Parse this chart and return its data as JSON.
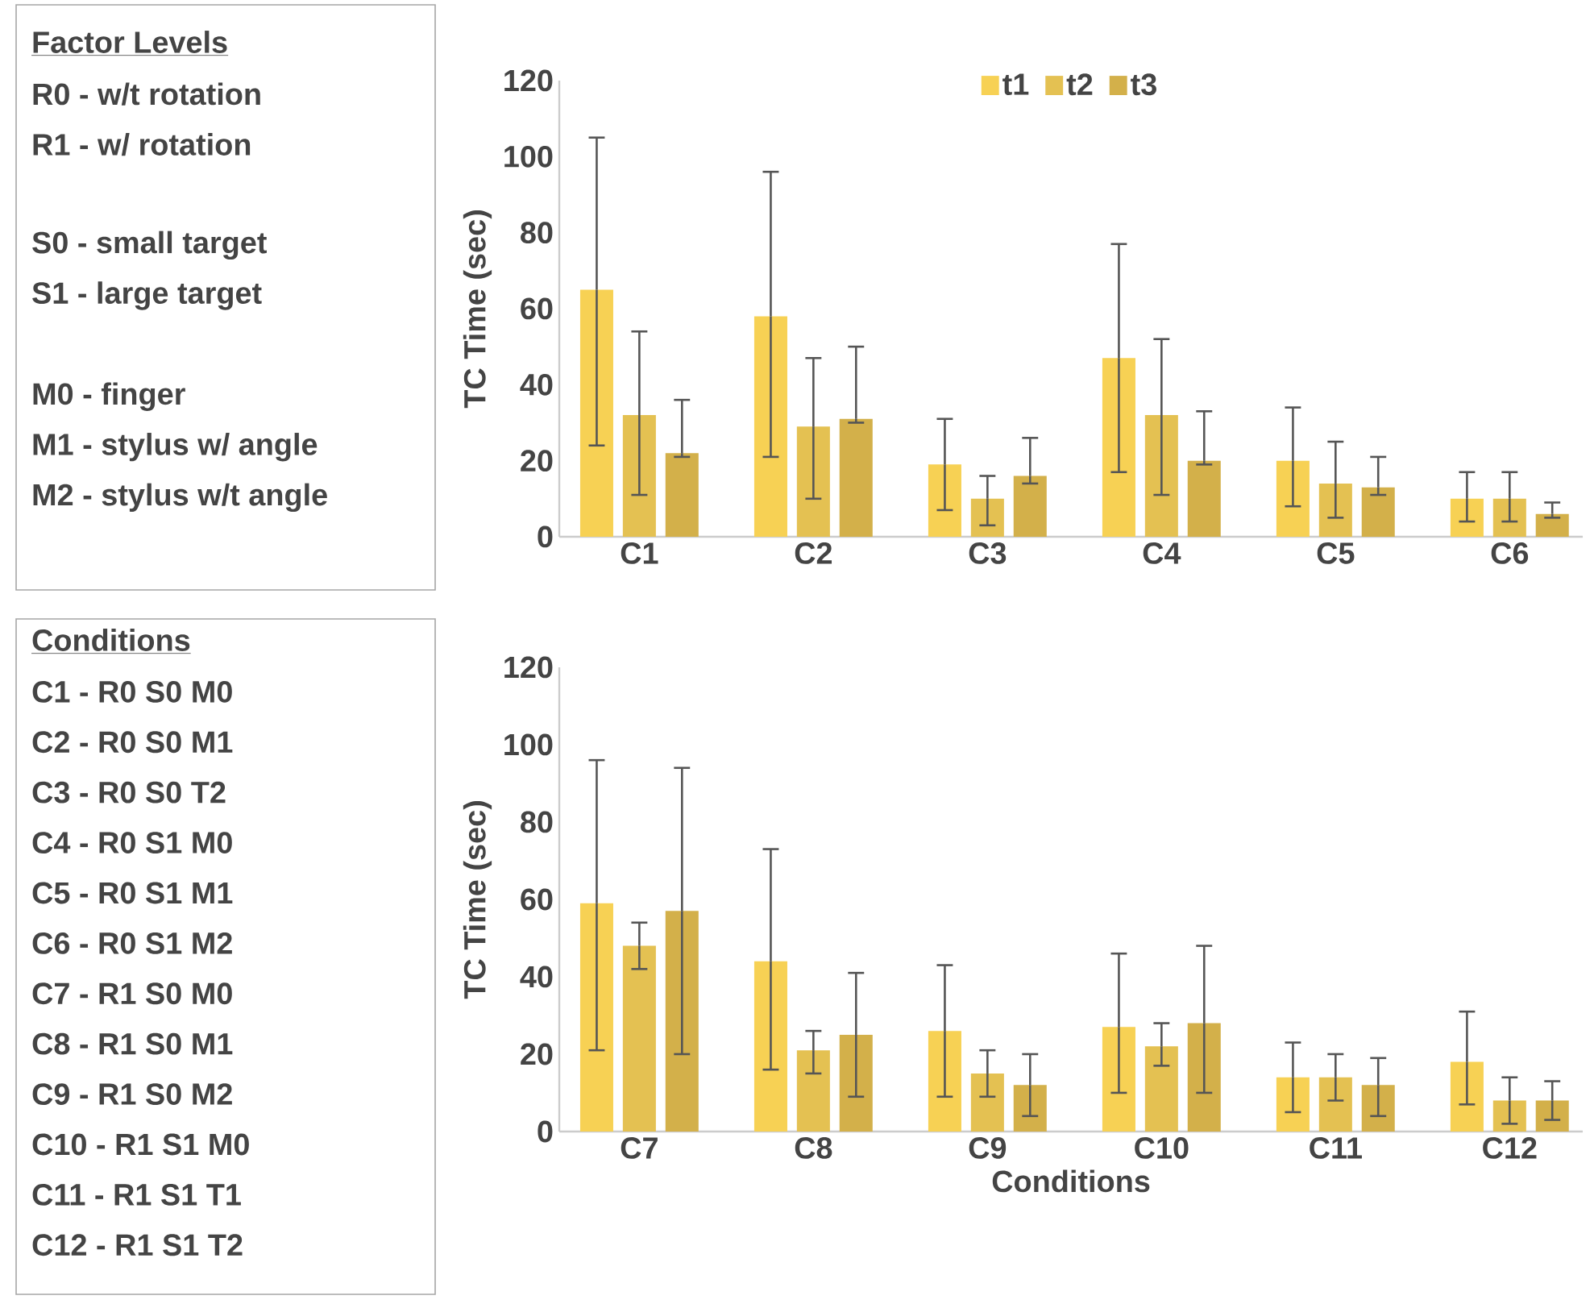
{
  "chart_data": [
    {
      "type": "other",
      "title": "Factor Levels",
      "annotations": [
        "R0 - w/t rotation",
        "R1 - w/ rotation",
        "S0 - small target",
        "S1 - large target",
        "M0 - finger",
        "M1 - stylus w/ angle",
        "M2 - stylus w/t angle"
      ]
    },
    {
      "type": "bar",
      "ylabel": "TC Time (sec)",
      "categories": [
        "C1",
        "C2",
        "C3",
        "C4",
        "C5",
        "C6"
      ],
      "ylim": [
        0,
        120
      ],
      "yticks": [
        0,
        20,
        40,
        60,
        80,
        100,
        120
      ],
      "legend": "top",
      "series": [
        {
          "name": "t1",
          "color": "#f7d154",
          "values": [
            65,
            58,
            19,
            47,
            20,
            10
          ],
          "errors": [
            [
              24,
              105
            ],
            [
              21,
              96
            ],
            [
              7,
              31
            ],
            [
              17,
              77
            ],
            [
              8,
              34
            ],
            [
              4,
              17
            ]
          ]
        },
        {
          "name": "t2",
          "color": "#e4c152",
          "values": [
            32,
            29,
            10,
            32,
            14,
            10
          ],
          "errors": [
            [
              11,
              54
            ],
            [
              10,
              47
            ],
            [
              3,
              16
            ],
            [
              11,
              52
            ],
            [
              5,
              25
            ],
            [
              4,
              17
            ]
          ]
        },
        {
          "name": "t3",
          "color": "#d3b04a",
          "values": [
            22,
            31,
            16,
            20,
            13,
            6
          ],
          "errors": [
            [
              21,
              36
            ],
            [
              30,
              50
            ],
            [
              14,
              26
            ],
            [
              19,
              33
            ],
            [
              11,
              21
            ],
            [
              5,
              9
            ]
          ]
        }
      ]
    },
    {
      "type": "other",
      "title": "Conditions",
      "annotations": [
        "C1 - R0 S0 M0",
        "C2 - R0 S0 M1",
        "C3 - R0 S0 T2",
        "C4 - R0 S1 M0",
        "C5 - R0 S1 M1",
        "C6 - R0 S1 M2",
        "C7 - R1 S0 M0",
        "C8 - R1 S0 M1",
        "C9 - R1 S0 M2",
        "C10 - R1 S1 M0",
        "C11 - R1 S1 T1",
        "C12 - R1 S1 T2"
      ]
    },
    {
      "type": "bar",
      "xlabel": "Conditions",
      "ylabel": "TC Time (sec)",
      "categories": [
        "C7",
        "C8",
        "C9",
        "C10",
        "C11",
        "C12"
      ],
      "ylim": [
        0,
        120
      ],
      "yticks": [
        0,
        20,
        40,
        60,
        80,
        100,
        120
      ],
      "series": [
        {
          "color": "#f7d154",
          "values": [
            59,
            44,
            26,
            27,
            14,
            18
          ],
          "errors": [
            [
              21,
              96
            ],
            [
              16,
              73
            ],
            [
              9,
              43
            ],
            [
              10,
              46
            ],
            [
              5,
              23
            ],
            [
              7,
              31
            ]
          ]
        },
        {
          "color": "#e4c152",
          "values": [
            48,
            21,
            15,
            22,
            14,
            8
          ],
          "errors": [
            [
              42,
              54
            ],
            [
              15,
              26
            ],
            [
              9,
              21
            ],
            [
              17,
              28
            ],
            [
              8,
              20
            ],
            [
              2,
              14
            ]
          ]
        },
        {
          "color": "#d3b04a",
          "values": [
            57,
            25,
            12,
            28,
            12,
            8
          ],
          "errors": [
            [
              20,
              94
            ],
            [
              9,
              41
            ],
            [
              4,
              20
            ],
            [
              10,
              48
            ],
            [
              4,
              19
            ],
            [
              3,
              13
            ]
          ]
        }
      ]
    }
  ]
}
